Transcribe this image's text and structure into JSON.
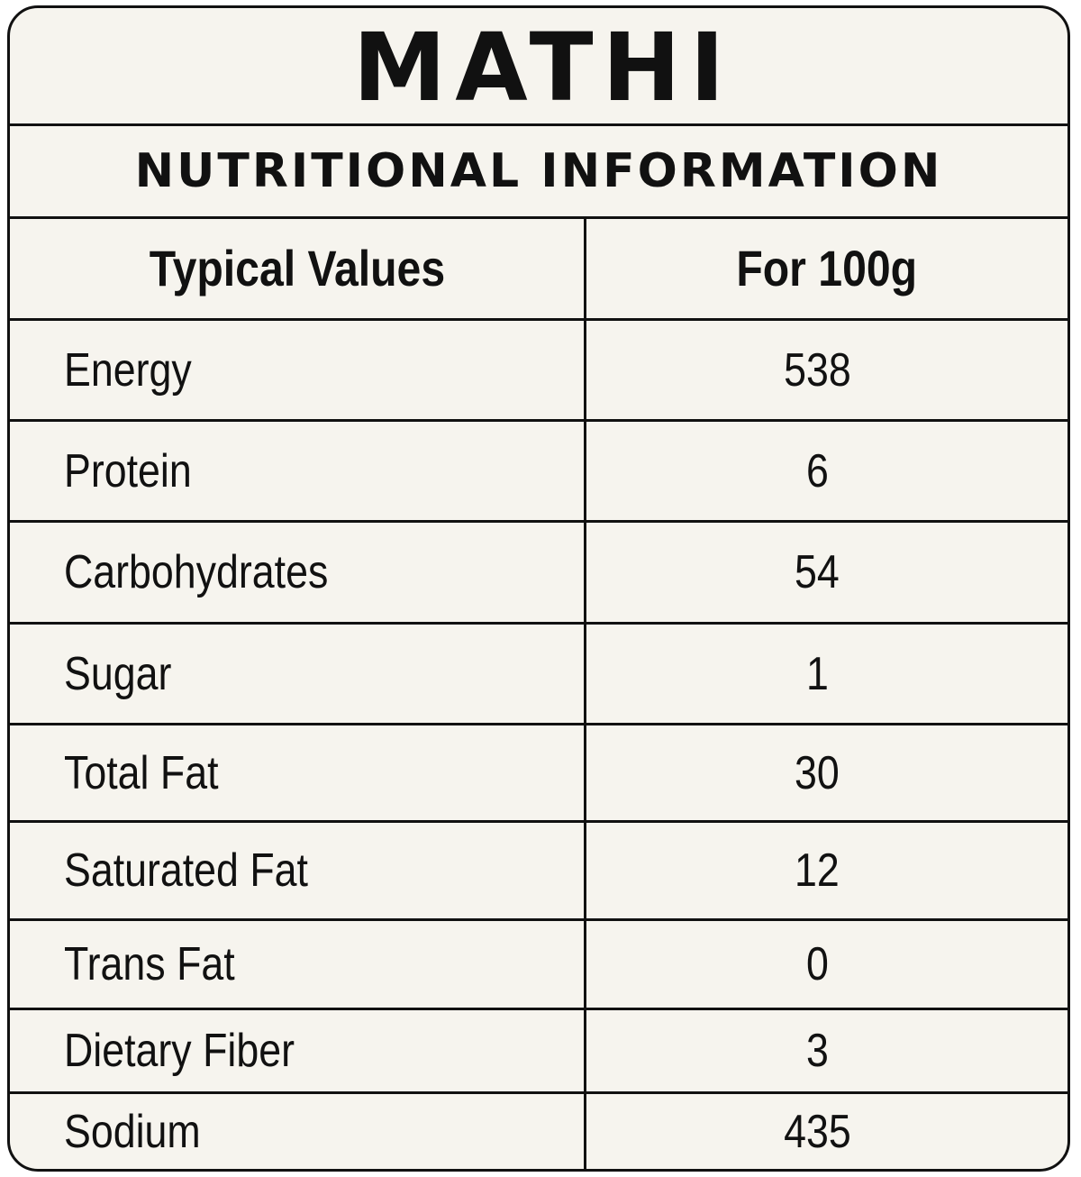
{
  "product_name": "MATHI",
  "section_title": "NUTRITIONAL INFORMATION",
  "table": {
    "header": {
      "name": "Typical Values",
      "value": "For 100g"
    },
    "rows": [
      {
        "name": "Energy",
        "value": "538"
      },
      {
        "name": "Protein",
        "value": "6"
      },
      {
        "name": "Carbohydrates",
        "value": "54"
      },
      {
        "name": "Sugar",
        "value": "1"
      },
      {
        "name": "Total Fat",
        "value": "30"
      },
      {
        "name": "Saturated Fat",
        "value": "12"
      },
      {
        "name": "Trans Fat",
        "value": "0"
      },
      {
        "name": "Dietary Fiber",
        "value": "3"
      },
      {
        "name": "Sodium",
        "value": "435"
      }
    ]
  }
}
